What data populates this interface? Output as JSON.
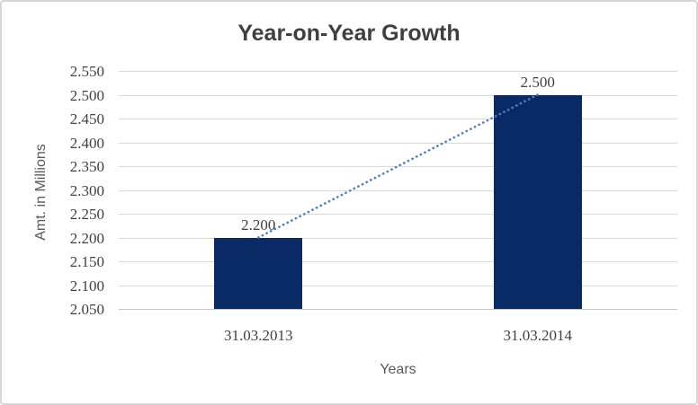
{
  "chart_data": {
    "type": "bar",
    "title": "Year-on-Year Growth",
    "xlabel": "Years",
    "ylabel": "Amt. in Millions",
    "categories": [
      "31.03.2013",
      "31.03.2014"
    ],
    "values": [
      2.2,
      2.5
    ],
    "data_labels": [
      "2.200",
      "2.500"
    ],
    "ylim": [
      2.05,
      2.55
    ],
    "ytick_labels": [
      "2.050",
      "2.100",
      "2.150",
      "2.200",
      "2.250",
      "2.300",
      "2.350",
      "2.400",
      "2.450",
      "2.500",
      "2.550"
    ],
    "grid": true,
    "legend": false,
    "bar_color": "#0A2A66",
    "gridline_color": "#D9D9D9",
    "axis_line_color": "#C6C6C6",
    "trendline": {
      "style": "dotted",
      "color": "#4A80C6"
    }
  }
}
